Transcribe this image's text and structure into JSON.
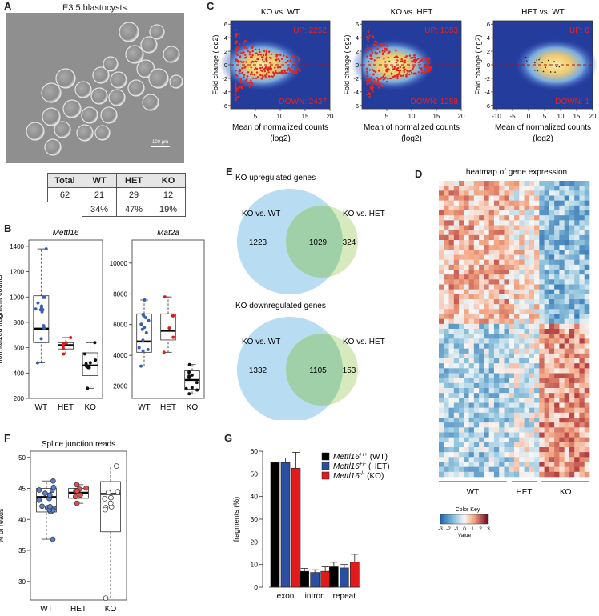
{
  "panels": {
    "A": "A",
    "B": "B",
    "C": "C",
    "D": "D",
    "E": "E",
    "F": "F",
    "G": "G"
  },
  "panel_a": {
    "title": "E3.5 blastocysts",
    "scale_bar": "100 µm",
    "table": {
      "headers": [
        "Total",
        "WT",
        "HET",
        "KO"
      ],
      "counts": [
        "62",
        "21",
        "29",
        "12"
      ],
      "percents": [
        "",
        "34%",
        "47%",
        "19%"
      ]
    }
  },
  "colors": {
    "wt": "#000000",
    "het": "#e31a1c",
    "ko": "#000000",
    "wt_dot": "#3a5fb0",
    "het_dot": "#d62020",
    "ko_dot": "#111111",
    "venn_left": "#b8dcf2",
    "venn_right": "#cfe6b2",
    "venn_overlap": "#9fd0a8"
  },
  "chart_data": [
    {
      "panel": "B",
      "type": "box",
      "title": "Mettl16",
      "ylabel": "normalized fragment counts",
      "categories": [
        "WT",
        "HET",
        "KO"
      ],
      "ylim": [
        200,
        1450
      ],
      "yticks": [
        "200",
        "400",
        "600",
        "800",
        "1000",
        "1200",
        "1400"
      ],
      "boxes": [
        {
          "q1": 640,
          "median": 750,
          "q3": 1010,
          "whisker_low": 480,
          "whisker_high": 1380
        },
        {
          "q1": 590,
          "median": 620,
          "q3": 640,
          "whisker_low": 550,
          "whisker_high": 680
        },
        {
          "q1": 380,
          "median": 460,
          "q3": 560,
          "whisker_low": 280,
          "whisker_high": 640
        }
      ]
    },
    {
      "panel": "B",
      "type": "box",
      "title": "Mat2a",
      "categories": [
        "WT",
        "HET",
        "KO"
      ],
      "ylim": [
        1200,
        11500
      ],
      "yticks": [
        "2000",
        "4000",
        "6000",
        "8000",
        "10000"
      ],
      "boxes": [
        {
          "q1": 4200,
          "median": 4900,
          "q3": 6700,
          "whisker_low": 3300,
          "whisker_high": 7600
        },
        {
          "q1": 5000,
          "median": 5600,
          "q3": 6700,
          "whisker_low": 4200,
          "whisker_high": 7800
        },
        {
          "q1": 1800,
          "median": 2400,
          "q3": 3000,
          "whisker_low": 1500,
          "whisker_high": 3400
        }
      ]
    },
    {
      "panel": "C",
      "type": "scatter",
      "plots": [
        {
          "title": "KO vs. WT",
          "up": "UP: 2252",
          "down": "DOWN: 2437",
          "xlim": [
            0,
            20
          ],
          "xticks": [
            "5",
            "10",
            "15",
            "20"
          ]
        },
        {
          "title": "KO vs. HET",
          "up": "UP: 1353",
          "down": "DOWN: 1258",
          "xlim": [
            0,
            20
          ],
          "xticks": [
            "5",
            "10",
            "15",
            "20"
          ]
        },
        {
          "title": "HET vs. WT",
          "up": "UP: 0",
          "down": "DOWN: 1",
          "xlim": [
            -11,
            20
          ],
          "xticks": [
            "-10",
            "-5",
            "0",
            "5",
            "10",
            "15",
            "20"
          ]
        }
      ],
      "ylabel": "Fold change (log2)",
      "xlabel_line1": "Mean of normalized counts",
      "xlabel_line2": "(log2)",
      "ylim": [
        -6.5,
        6.5
      ],
      "yticks": [
        "6",
        "4",
        "2",
        "0",
        "-2",
        "-4",
        "-6"
      ]
    },
    {
      "panel": "E",
      "type": "venn",
      "diagrams": [
        {
          "title": "KO upregulated genes",
          "left_label": "KO vs. WT",
          "right_label": "KO vs. HET",
          "left_only": "1223",
          "both": "1029",
          "right_only": "324"
        },
        {
          "title": "KO downregulated genes",
          "left_label": "KO vs. WT",
          "right_label": "KO vs. HET",
          "left_only": "1332",
          "both": "1105",
          "right_only": "153"
        }
      ]
    },
    {
      "panel": "D",
      "type": "heatmap",
      "title": "heatmap of gene expression",
      "groups": [
        "WT",
        "HET",
        "KO"
      ],
      "key_title": "Color Key",
      "key_label": "Value",
      "key_ticks": [
        "-3",
        "-2",
        "-1",
        "0",
        "1",
        "2",
        "3"
      ]
    },
    {
      "panel": "F",
      "type": "box",
      "title": "Splice junction reads",
      "ylabel": "% of reads",
      "categories": [
        "WT",
        "HET",
        "KO"
      ],
      "ylim": [
        27,
        51
      ],
      "yticks": [
        "30",
        "35",
        "40",
        "45",
        "50"
      ],
      "boxes": [
        {
          "q1": 41.2,
          "median": 43.6,
          "q3": 45.0,
          "whisker_low": 36.8,
          "whisker_high": 46.2
        },
        {
          "q1": 43.4,
          "median": 44.3,
          "q3": 45.0,
          "whisker_low": 42.6,
          "whisker_high": 45.6
        },
        {
          "q1": 38.0,
          "median": 44.1,
          "q3": 46.1,
          "whisker_low": 27.3,
          "whisker_high": 48.6
        }
      ]
    },
    {
      "panel": "G",
      "type": "bar",
      "ylabel": "fragments (%)",
      "categories": [
        "exon",
        "intron",
        "repeat"
      ],
      "ylim": [
        0,
        60
      ],
      "yticks": [
        "0",
        "10",
        "20",
        "30",
        "40",
        "50",
        "60"
      ],
      "series": [
        {
          "name": "Mettl16+/+ (WT)",
          "color": "#000000",
          "values": [
            55,
            7,
            9
          ],
          "errors": [
            2,
            1.3,
            2
          ]
        },
        {
          "name": "Mettl16+/- (HET)",
          "color": "#2a4fa0",
          "values": [
            55,
            6.5,
            8.5
          ],
          "errors": [
            2,
            1.2,
            1.5
          ]
        },
        {
          "name": "Mettl16-/- (KO)",
          "color": "#e31a1c",
          "values": [
            52.5,
            7,
            11
          ],
          "errors": [
            7,
            2,
            3.5
          ]
        }
      ],
      "legend": [
        {
          "gene": "Mettl16",
          "sup": "+/+",
          "suffix": " (WT)"
        },
        {
          "gene": "Mettl16",
          "sup": "+/-",
          "suffix": " (HET)"
        },
        {
          "gene": "Mettl16",
          "sup": "-/-",
          "suffix": " (KO)"
        }
      ]
    }
  ]
}
